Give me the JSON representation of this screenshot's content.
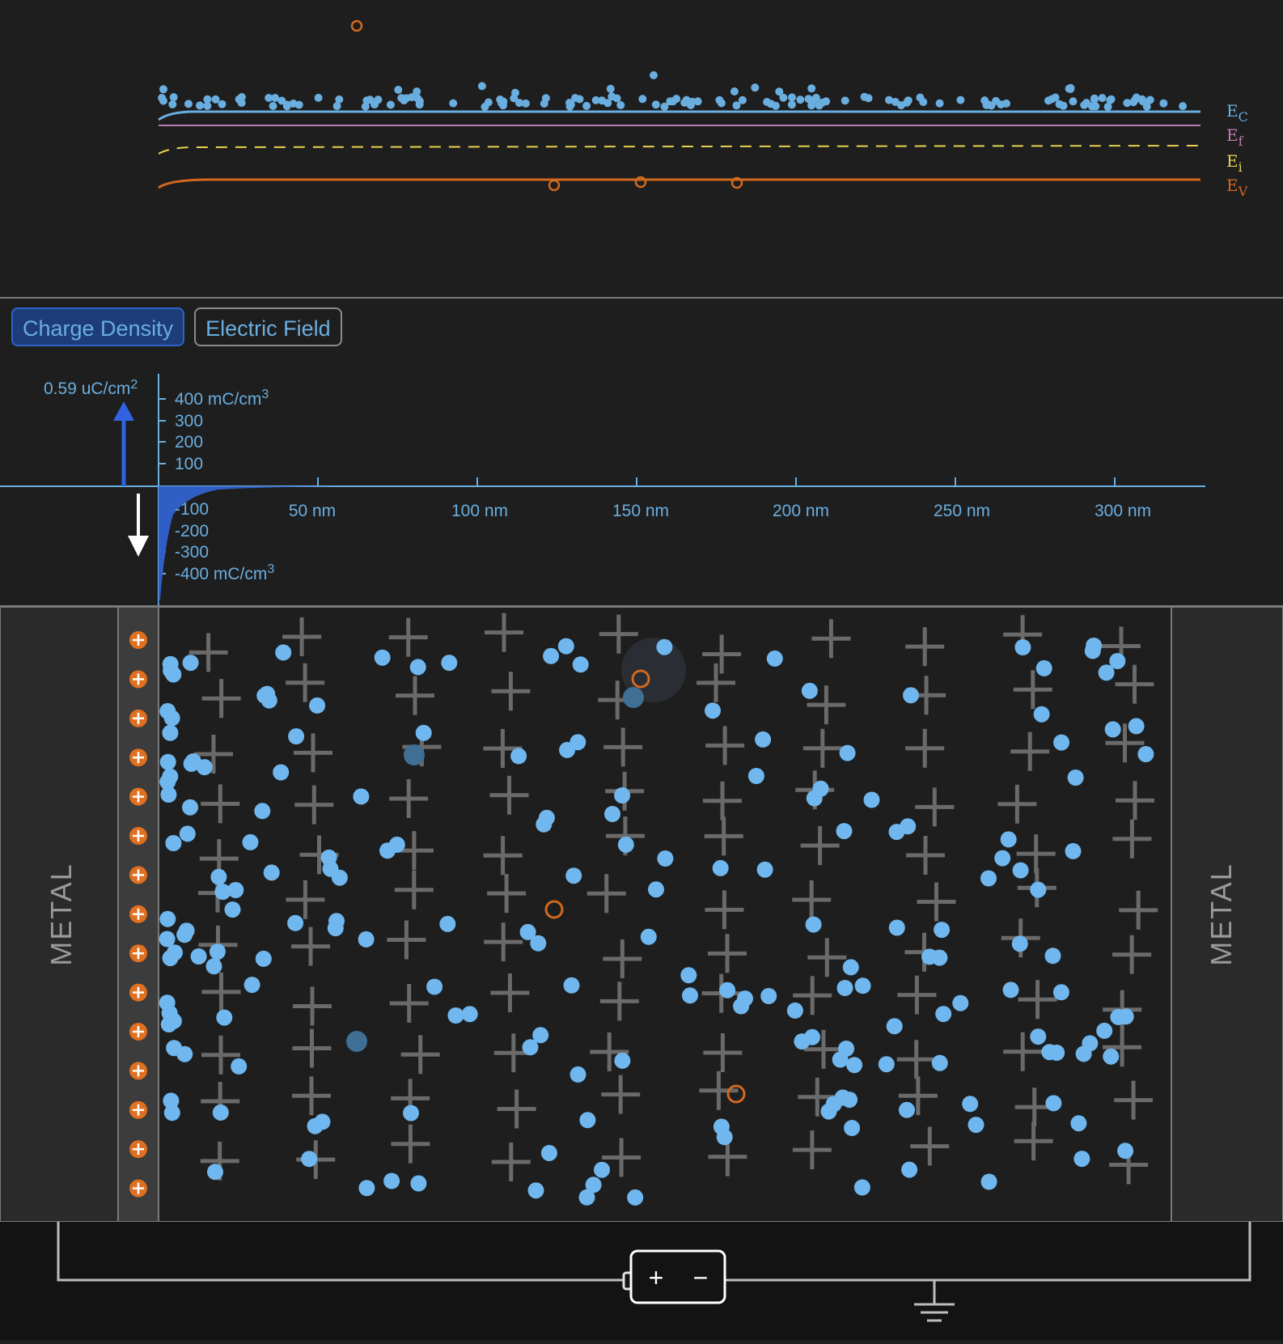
{
  "band_diagram": {
    "legend": [
      {
        "key": "E",
        "sub": "C",
        "color": "#6aaee0"
      },
      {
        "key": "E",
        "sub": "f",
        "color": "#c07cae"
      },
      {
        "key": "E",
        "sub": "i",
        "color": "#e5d24f"
      },
      {
        "key": "E",
        "sub": "V",
        "color": "#d2691e"
      }
    ]
  },
  "tabs": {
    "charge_density": "Charge Density",
    "electric_field": "Electric Field"
  },
  "density_plot": {
    "surface_charge_value": "0.59 uC/cm",
    "surface_charge_exp": "2",
    "y_ticks": [
      "400 mC/cm",
      "300",
      "200",
      "100",
      "-100",
      "-200",
      "-300",
      "-400 mC/cm"
    ],
    "y_unit_exp": "3",
    "x_ticks": [
      "50 nm",
      "100 nm",
      "150 nm",
      "200 nm",
      "250 nm",
      "300 nm"
    ]
  },
  "device": {
    "left_label": "METAL",
    "right_label": "METAL"
  },
  "battery": {
    "plus": "+",
    "minus": "−"
  },
  "colors": {
    "background": "#1e1e1e",
    "electron": "#6aaee0",
    "hole": "#d2691e",
    "accent_blue": "#2f63c9",
    "ion": "#6a6a6a"
  },
  "icons": [
    "surface-charge-arrow-up-icon",
    "field-arrow-down-icon",
    "plus-ion-icon",
    "ground-icon",
    "battery-icon"
  ]
}
